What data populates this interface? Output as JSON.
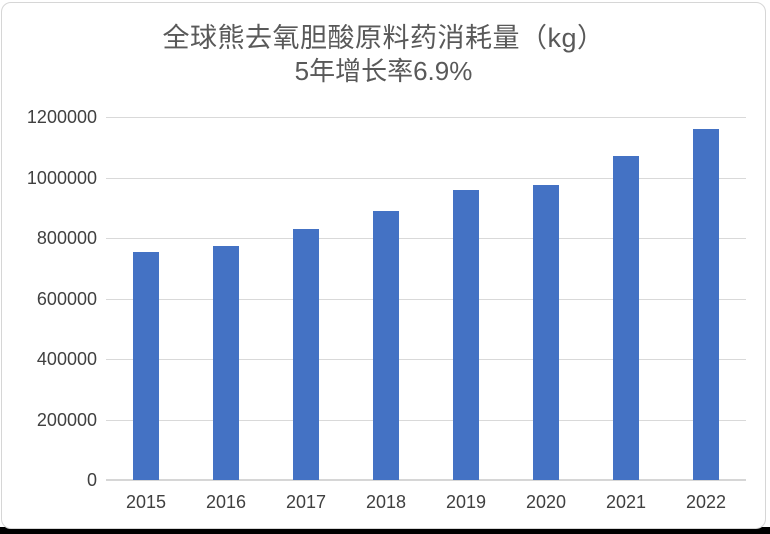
{
  "page": {
    "bottom_strip_color": "#000000",
    "card_background": "#ffffff",
    "card_border_color": "#d6d6d6"
  },
  "chart_data": {
    "type": "bar",
    "title": "全球熊去氧胆酸原料药消耗量（kg）",
    "subtitle": "5年增长率6.9%",
    "categories": [
      "2015",
      "2016",
      "2017",
      "2018",
      "2019",
      "2020",
      "2021",
      "2022"
    ],
    "values": [
      755000,
      775000,
      830000,
      890000,
      960000,
      975000,
      1070000,
      1160000
    ],
    "xlabel": "",
    "ylabel": "",
    "ylim": [
      0,
      1200000
    ],
    "yticks": [
      0,
      200000,
      400000,
      600000,
      800000,
      1000000,
      1200000
    ],
    "ytick_labels": [
      "0",
      "200000",
      "400000",
      "600000",
      "800000",
      "1000000",
      "1200000"
    ],
    "grid": true,
    "legend_position": "none",
    "bar_color": "#4472C4",
    "gridline_color": "#d9d9d9",
    "axis_line_color": "#d6d6d6",
    "tick_label_color": "#404040",
    "title_color": "#595959"
  }
}
